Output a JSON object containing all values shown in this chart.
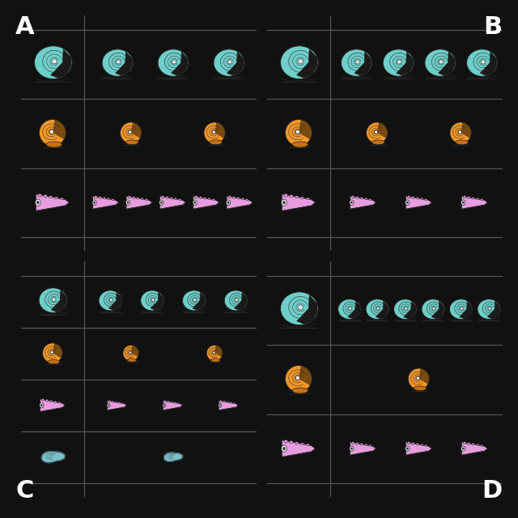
{
  "background_color": "#111111",
  "label_color": "#ffffff",
  "table_label_fontsize": 22,
  "panels": {
    "A": {
      "row": 0,
      "col": 0,
      "green_shells": 3,
      "orange_shells": 2,
      "pink_shells": 5,
      "blue_shells": 0
    },
    "B": {
      "row": 0,
      "col": 1,
      "green_shells": 4,
      "orange_shells": 2,
      "pink_shells": 3,
      "blue_shells": 0
    },
    "C": {
      "row": 1,
      "col": 0,
      "green_shells": 4,
      "orange_shells": 2,
      "pink_shells": 3,
      "blue_shells": 1
    },
    "D": {
      "row": 1,
      "col": 1,
      "green_shells": 6,
      "orange_shells": 1,
      "pink_shells": 3,
      "blue_shells": 0
    }
  },
  "colors": {
    "green": "#6ecfc8",
    "green_dark": "#4aaba4",
    "orange": "#f0982a",
    "orange_dark": "#c97010",
    "pink": "#e89ce0",
    "pink_dark": "#c070b8",
    "blue": "#88d4e0",
    "blue_dark": "#50a8b8"
  },
  "outline": "#222222",
  "line_color": "#555555"
}
